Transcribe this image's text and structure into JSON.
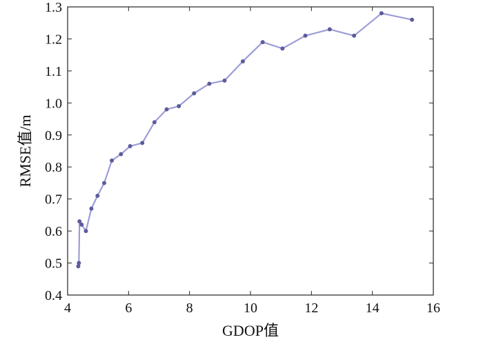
{
  "chart_data": {
    "type": "line",
    "title": "",
    "xlabel": "GDOP值",
    "ylabel": "RMSE值/m",
    "xlim": [
      4,
      16
    ],
    "ylim": [
      0.4,
      1.3
    ],
    "xticks": [
      4,
      6,
      8,
      10,
      12,
      14,
      16
    ],
    "yticks": [
      0.4,
      0.5,
      0.6,
      0.7,
      0.8,
      0.9,
      1.0,
      1.1,
      1.2,
      1.3
    ],
    "xtick_labels": [
      "4",
      "6",
      "8",
      "10",
      "12",
      "14",
      "16"
    ],
    "ytick_labels": [
      "0.4",
      "0.5",
      "0.6",
      "0.7",
      "0.8",
      "0.9",
      "1.0",
      "1.1",
      "1.2",
      "1.3"
    ],
    "grid": false,
    "line_color": "#9c9cd8",
    "marker_color": "#5c5c9c",
    "series": [
      {
        "x": [
          4.35,
          4.37,
          4.39,
          4.46,
          4.6,
          4.78,
          4.98,
          5.2,
          5.45,
          5.75,
          6.05,
          6.45,
          6.85,
          7.25,
          7.65,
          8.15,
          8.65,
          9.15,
          9.75,
          10.4,
          11.05,
          11.8,
          12.6,
          13.4,
          14.3,
          15.3
        ],
        "y": [
          0.49,
          0.5,
          0.63,
          0.62,
          0.6,
          0.67,
          0.71,
          0.75,
          0.82,
          0.84,
          0.865,
          0.875,
          0.94,
          0.98,
          0.99,
          1.03,
          1.06,
          1.07,
          1.13,
          1.19,
          1.17,
          1.21,
          1.23,
          1.21,
          1.28,
          1.26
        ]
      }
    ]
  }
}
